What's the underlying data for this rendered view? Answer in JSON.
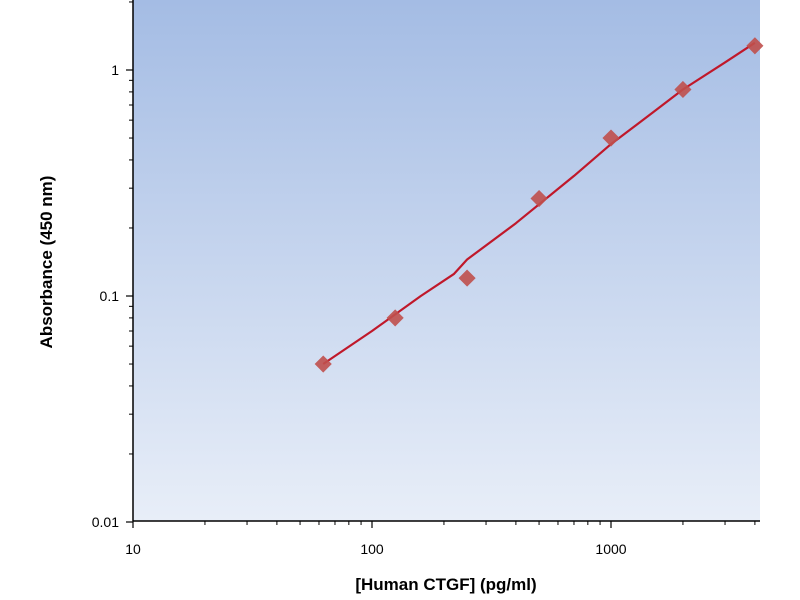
{
  "chart_data": {
    "type": "scatter",
    "title": "",
    "xlabel": "[Human CTGF] (pg/ml)",
    "ylabel": "Absorbance (450 nm)",
    "x_scale": "log",
    "y_scale": "log",
    "xlim": [
      10,
      4000
    ],
    "ylim": [
      0.01,
      2
    ],
    "x_ticks": [
      10,
      100,
      1000
    ],
    "x_tick_labels": [
      "10",
      "100",
      "1000"
    ],
    "y_ticks": [
      0.01,
      0.1,
      1
    ],
    "y_tick_labels": [
      "0.01",
      "0.1",
      "1"
    ],
    "grid": false,
    "legend": "none",
    "background_gradient": [
      "#a4bce4",
      "#e8eef8"
    ],
    "series": [
      {
        "kind": "points",
        "color": "#c0504d",
        "marker": "diamond",
        "x": [
          62.5,
          125,
          250,
          500,
          1000,
          2000,
          4000
        ],
        "y": [
          0.05,
          0.08,
          0.12,
          0.27,
          0.5,
          0.82,
          1.28
        ]
      },
      {
        "kind": "fit-line",
        "color": "#c0182a",
        "x": [
          62.5,
          100,
          160,
          220,
          250,
          400,
          700,
          1000,
          1500,
          2000,
          3000,
          4000
        ],
        "y": [
          0.05,
          0.07,
          0.1,
          0.125,
          0.145,
          0.21,
          0.34,
          0.47,
          0.65,
          0.82,
          1.08,
          1.32
        ]
      }
    ]
  }
}
